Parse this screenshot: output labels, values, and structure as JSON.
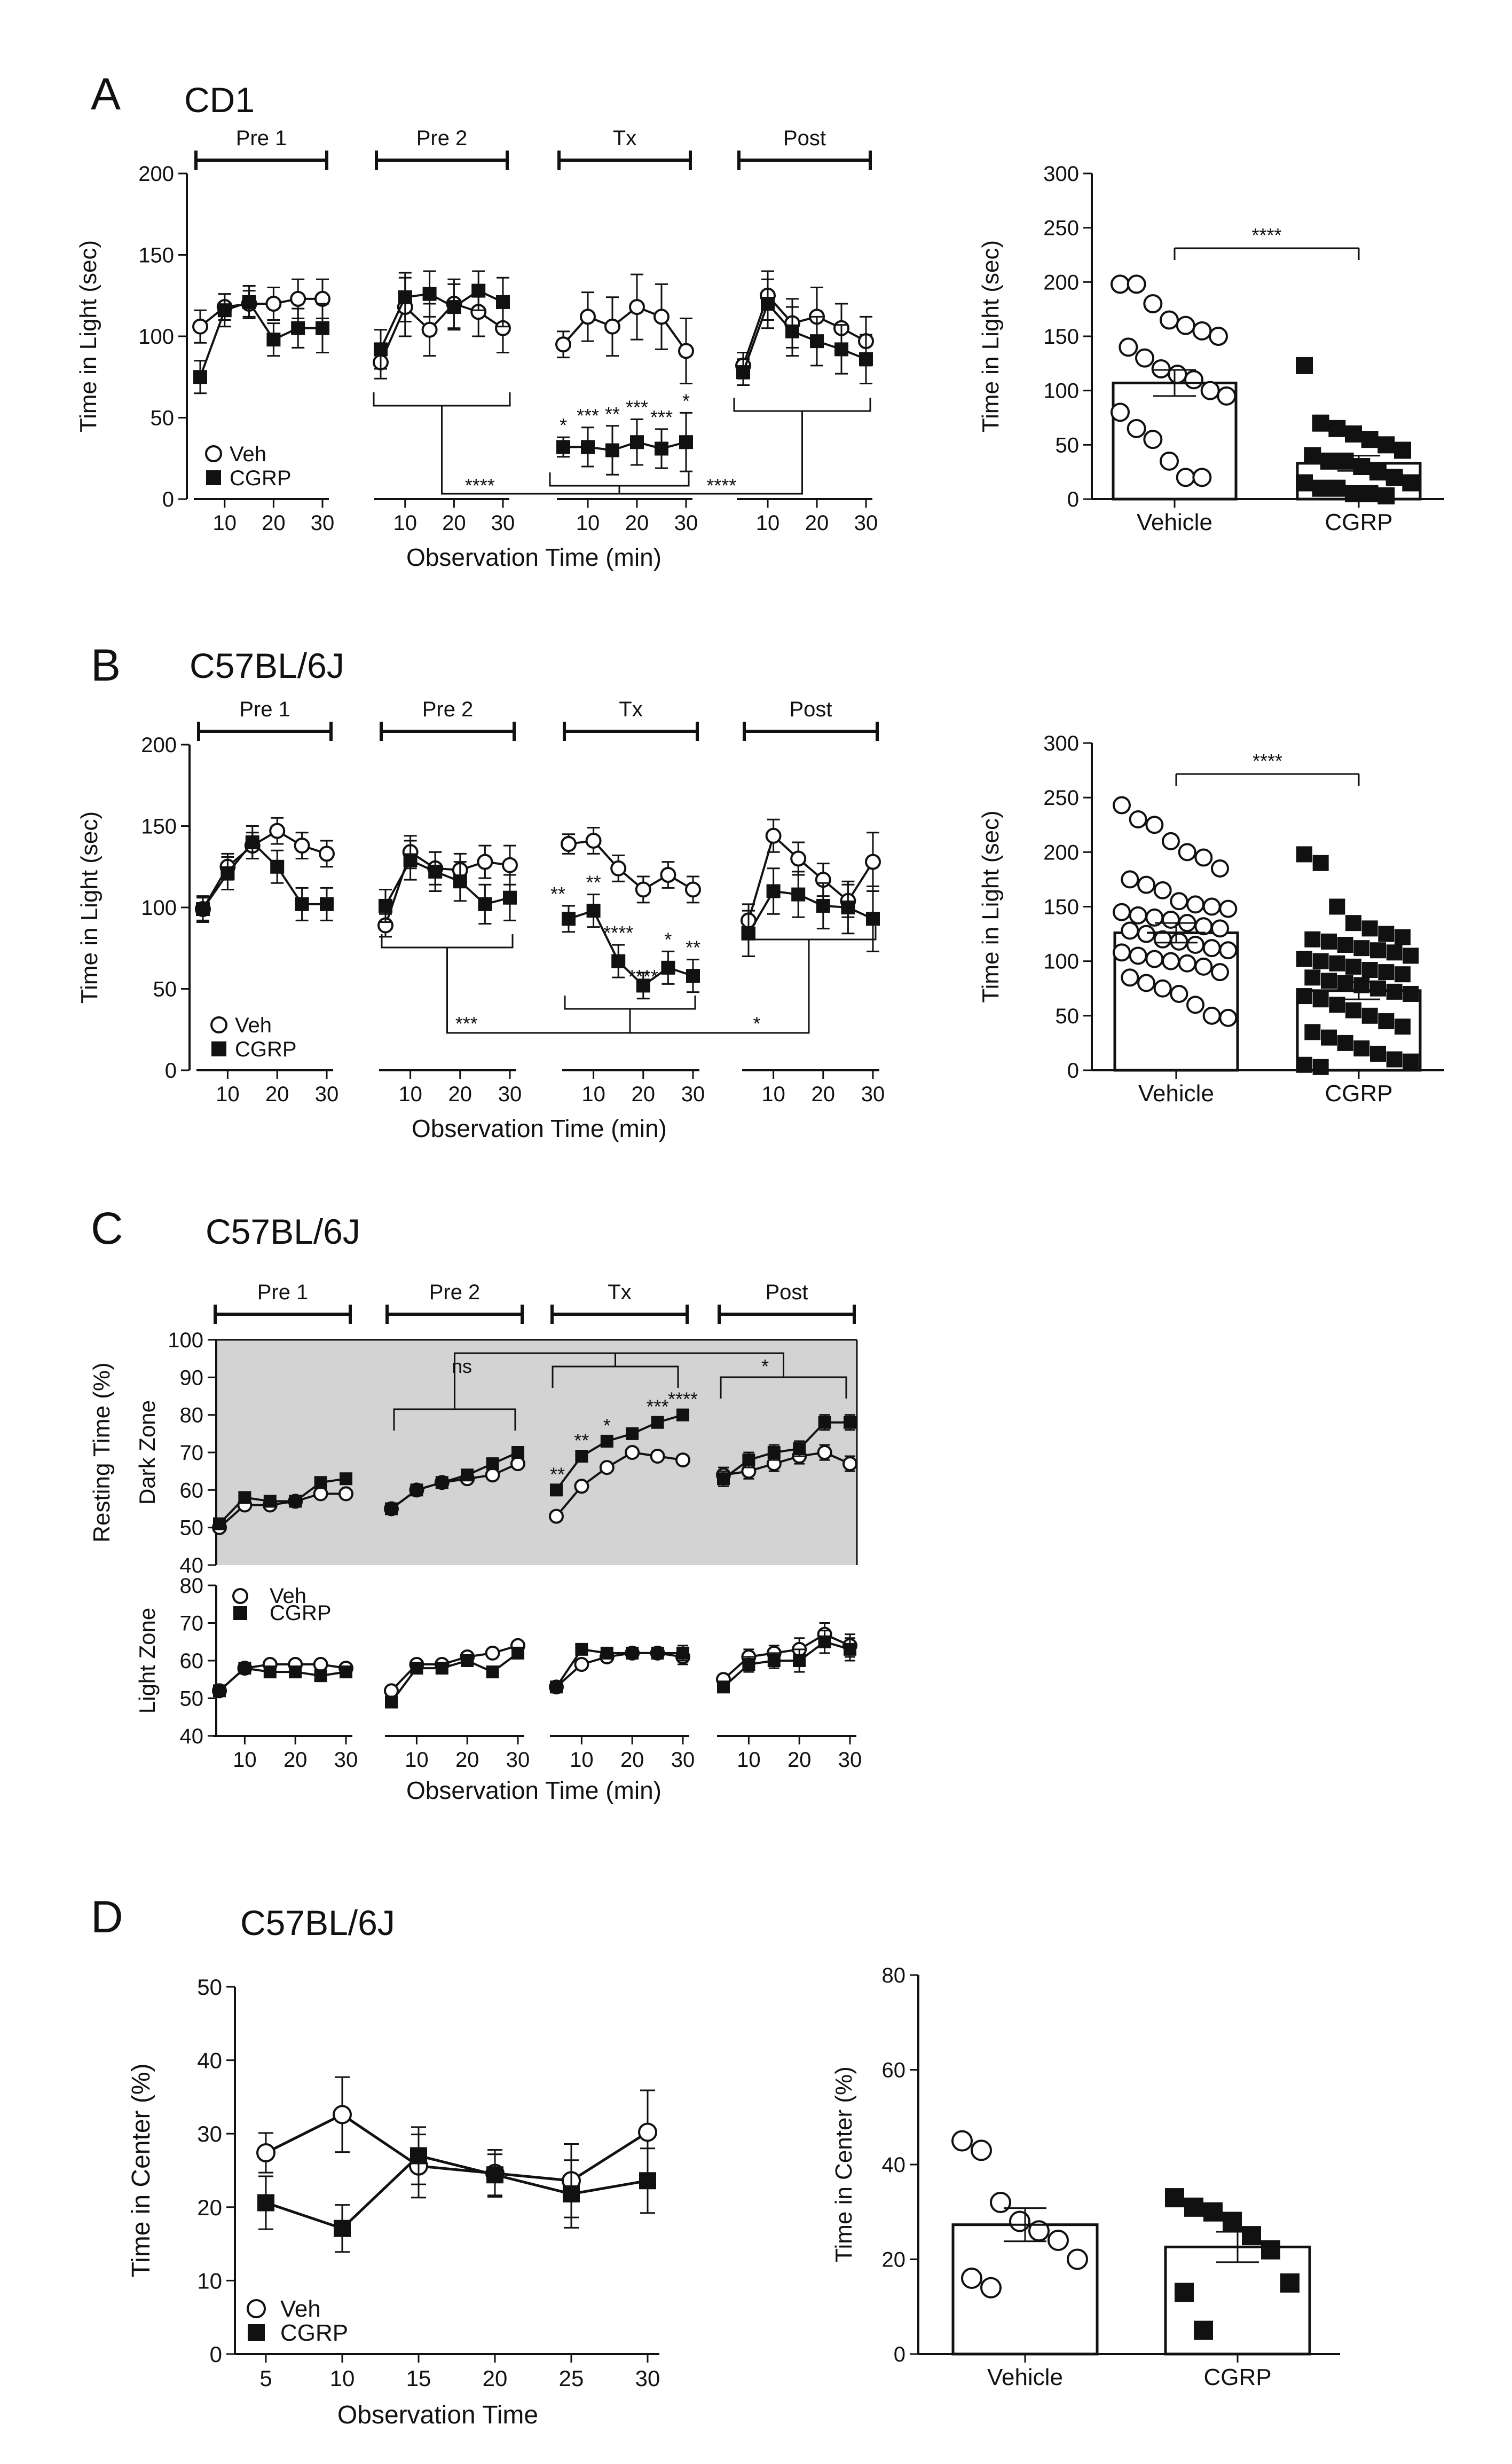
{
  "figure": {
    "panels": [
      "A",
      "B",
      "C",
      "D"
    ]
  },
  "chart_data": [
    {
      "id": "A_line",
      "type": "line",
      "panel": "A",
      "strain": "CD1",
      "ylabel": "Time in Light (sec)",
      "xlabel": "Observation Time (min)",
      "ylim": [
        0,
        200
      ],
      "yticks": [
        0,
        50,
        100,
        150,
        200
      ],
      "phases": [
        "Pre 1",
        "Pre 2",
        "Tx",
        "Post"
      ],
      "x": [
        5,
        10,
        15,
        20,
        25,
        30
      ],
      "xticks": [
        10,
        20,
        30
      ],
      "series": [
        {
          "name": "Veh",
          "marker": "open-circle",
          "values": [
            [
              106,
              118,
              120,
              120,
              123,
              123
            ],
            [
              84,
              118,
              104,
              120,
              115,
              105
            ],
            [
              95,
              112,
              106,
              118,
              112,
              91
            ],
            [
              82,
              125,
              108,
              112,
              105,
              97
            ]
          ],
          "errors": [
            [
              10,
              8,
              8,
              10,
              12,
              12
            ],
            [
              10,
              18,
              16,
              15,
              15,
              15
            ],
            [
              8,
              15,
              18,
              20,
              20,
              20
            ],
            [
              8,
              15,
              15,
              18,
              15,
              15
            ]
          ]
        },
        {
          "name": "CGRP",
          "marker": "filled-square",
          "values": [
            [
              75,
              116,
              121,
              98,
              105,
              105
            ],
            [
              92,
              124,
              126,
              118,
              128,
              121
            ],
            [
              32,
              32,
              30,
              35,
              31,
              35
            ],
            [
              78,
              120,
              103,
              97,
              92,
              86
            ]
          ],
          "errors": [
            [
              10,
              10,
              10,
              10,
              12,
              15
            ],
            [
              12,
              15,
              14,
              14,
              12,
              15
            ],
            [
              6,
              12,
              15,
              14,
              12,
              18
            ],
            [
              8,
              15,
              15,
              15,
              15,
              15
            ]
          ]
        }
      ],
      "stars": [
        [
          "*",
          "***",
          "**",
          "***",
          "***",
          "*"
        ]
      ],
      "brackets": [
        {
          "label": "****"
        },
        {
          "label": "****"
        }
      ]
    },
    {
      "id": "A_bar",
      "type": "bar",
      "panel": "A",
      "ylabel": "Time in Light (sec)",
      "ylim": [
        0,
        300
      ],
      "yticks": [
        0,
        50,
        100,
        150,
        200,
        250,
        300
      ],
      "categories": [
        "Vehicle",
        "CGRP"
      ],
      "values": [
        107,
        33
      ],
      "errors": [
        12,
        7
      ],
      "significance": "****",
      "points": [
        [
          198,
          198,
          180,
          165,
          160,
          155,
          150,
          140,
          130,
          120,
          115,
          110,
          100,
          95,
          80,
          65,
          55,
          35,
          20,
          20
        ],
        [
          123,
          70,
          65,
          60,
          55,
          50,
          45,
          40,
          35,
          35,
          30,
          25,
          20,
          15,
          15,
          10,
          10,
          5,
          5,
          3
        ]
      ]
    },
    {
      "id": "B_line",
      "type": "line",
      "panel": "B",
      "strain": "C57BL/6J",
      "ylabel": "Time in Light (sec)",
      "xlabel": "Observation Time (min)",
      "ylim": [
        0,
        200
      ],
      "yticks": [
        0,
        50,
        100,
        150,
        200
      ],
      "phases": [
        "Pre 1",
        "Pre 2",
        "Tx",
        "Post"
      ],
      "x": [
        5,
        10,
        15,
        20,
        25,
        30
      ],
      "xticks": [
        10,
        20,
        30
      ],
      "series": [
        {
          "name": "Veh",
          "marker": "open-circle",
          "values": [
            [
              99,
              125,
              138,
              147,
              138,
              133
            ],
            [
              89,
              134,
              124,
              123,
              128,
              126
            ],
            [
              139,
              141,
              124,
              111,
              120,
              111
            ],
            [
              92,
              144,
              130,
              117,
              104,
              128
            ]
          ],
          "errors": [
            [
              7,
              8,
              8,
              8,
              8,
              8
            ],
            [
              7,
              10,
              10,
              10,
              10,
              12
            ],
            [
              6,
              8,
              8,
              8,
              8,
              8
            ],
            [
              10,
              10,
              10,
              10,
              10,
              18
            ]
          ]
        },
        {
          "name": "CGRP",
          "marker": "filled-square",
          "values": [
            [
              99,
              121,
              140,
              125,
              102,
              102
            ],
            [
              101,
              129,
              122,
              116,
              102,
              106
            ],
            [
              93,
              98,
              67,
              52,
              63,
              58
            ],
            [
              84,
              110,
              108,
              101,
              100,
              93
            ]
          ],
          "errors": [
            [
              8,
              10,
              10,
              10,
              10,
              10
            ],
            [
              10,
              12,
              12,
              12,
              12,
              14
            ],
            [
              8,
              10,
              10,
              8,
              10,
              10
            ],
            [
              14,
              14,
              14,
              14,
              16,
              20
            ]
          ]
        }
      ],
      "stars": [
        [
          "**",
          "**",
          "****",
          "****",
          "*",
          "**"
        ]
      ],
      "brackets": [
        {
          "label": "***"
        },
        {
          "label": "*"
        }
      ]
    },
    {
      "id": "B_bar",
      "type": "bar",
      "panel": "B",
      "ylabel": "Time in Light (sec)",
      "ylim": [
        0,
        300
      ],
      "yticks": [
        0,
        50,
        100,
        150,
        200,
        250,
        300
      ],
      "categories": [
        "Vehicle",
        "CGRP"
      ],
      "values": [
        126,
        73
      ],
      "errors": [
        9,
        8
      ],
      "significance": "****",
      "points": [
        [
          243,
          230,
          225,
          210,
          200,
          195,
          185,
          175,
          170,
          165,
          155,
          152,
          150,
          148,
          145,
          142,
          140,
          138,
          135,
          132,
          130,
          128,
          125,
          120,
          118,
          115,
          112,
          110,
          108,
          105,
          102,
          100,
          98,
          95,
          90,
          85,
          80,
          75,
          70,
          60,
          50,
          48
        ],
        [
          198,
          190,
          150,
          135,
          130,
          125,
          122,
          120,
          118,
          115,
          112,
          110,
          108,
          105,
          102,
          100,
          98,
          95,
          92,
          90,
          88,
          85,
          82,
          80,
          78,
          75,
          72,
          70,
          68,
          65,
          60,
          55,
          50,
          45,
          40,
          35,
          30,
          25,
          20,
          15,
          10,
          8,
          5,
          3
        ]
      ]
    },
    {
      "id": "C_dark",
      "type": "line",
      "panel": "C",
      "strain": "C57BL/6J",
      "zone": "Dark Zone",
      "ylabel": "Resting Time (%)",
      "ylim": [
        40,
        100
      ],
      "yticks": [
        40,
        50,
        60,
        70,
        80,
        90,
        100
      ],
      "phases": [
        "Pre 1",
        "Pre 2",
        "Tx",
        "Post"
      ],
      "x": [
        5,
        10,
        15,
        20,
        25,
        30
      ],
      "xticks": [
        10,
        20,
        30
      ],
      "series": [
        {
          "name": "Veh",
          "marker": "open-circle",
          "values": [
            [
              50,
              56,
              56,
              57,
              59,
              59
            ],
            [
              55,
              60,
              62,
              63,
              64,
              67
            ],
            [
              53,
              61,
              66,
              70,
              69,
              68
            ],
            [
              64,
              65,
              67,
              69,
              70,
              67
            ]
          ],
          "errors": [
            [
              1,
              1,
              1,
              1,
              1,
              1
            ],
            [
              1,
              1,
              1,
              1,
              1,
              1
            ],
            [
              1,
              1,
              1,
              1,
              1,
              1
            ],
            [
              2,
              2,
              2,
              2,
              2,
              2
            ]
          ]
        },
        {
          "name": "CGRP",
          "marker": "filled-square",
          "values": [
            [
              51,
              58,
              57,
              57,
              62,
              63
            ],
            [
              55,
              60,
              62,
              64,
              67,
              70
            ],
            [
              60,
              69,
              73,
              75,
              78,
              80
            ],
            [
              63,
              68,
              70,
              71,
              78,
              78
            ]
          ],
          "errors": [
            [
              1,
              1,
              1,
              1,
              1,
              1
            ],
            [
              1,
              1,
              1,
              1,
              1,
              1
            ],
            [
              1,
              1,
              1,
              1,
              1,
              1
            ],
            [
              2,
              2,
              2,
              2,
              2,
              2
            ]
          ]
        }
      ],
      "stars": [
        [
          "**",
          "**",
          "*",
          "",
          "***",
          "****"
        ]
      ],
      "brackets": [
        {
          "label": "ns"
        },
        {
          "label": "*"
        }
      ]
    },
    {
      "id": "C_light",
      "type": "line",
      "panel": "C",
      "zone": "Light Zone",
      "xlabel": "Observation Time (min)",
      "ylim": [
        40,
        80
      ],
      "yticks": [
        40,
        50,
        60,
        70,
        80
      ],
      "x": [
        5,
        10,
        15,
        20,
        25,
        30
      ],
      "xticks": [
        10,
        20,
        30
      ],
      "series": [
        {
          "name": "Veh",
          "marker": "open-circle",
          "values": [
            [
              52,
              58,
              59,
              59,
              59,
              58
            ],
            [
              52,
              59,
              59,
              61,
              62,
              64
            ],
            [
              53,
              59,
              61,
              62,
              62,
              61
            ],
            [
              55,
              61,
              62,
              63,
              67,
              64
            ]
          ],
          "errors": [
            [
              1,
              1,
              1,
              1,
              1,
              1
            ],
            [
              1,
              1,
              1,
              1,
              1,
              1
            ],
            [
              1,
              1,
              1,
              1,
              1,
              2
            ],
            [
              1,
              2,
              2,
              3,
              3,
              3
            ]
          ]
        },
        {
          "name": "CGRP",
          "marker": "filled-square",
          "values": [
            [
              52,
              58,
              57,
              57,
              56,
              57
            ],
            [
              49,
              58,
              58,
              60,
              57,
              62
            ],
            [
              53,
              63,
              62,
              62,
              62,
              62
            ],
            [
              53,
              59,
              60,
              60,
              65,
              63
            ]
          ],
          "errors": [
            [
              1,
              1,
              1,
              1,
              1,
              1
            ],
            [
              1,
              1,
              1,
              1,
              1,
              1
            ],
            [
              1,
              1,
              1,
              1,
              1,
              2
            ],
            [
              1,
              2,
              2,
              3,
              3,
              3
            ]
          ]
        }
      ]
    },
    {
      "id": "D_line",
      "type": "line",
      "panel": "D",
      "strain": "C57BL/6J",
      "ylabel": "Time in Center (%)",
      "xlabel": "Observation Time",
      "ylim": [
        0,
        50
      ],
      "yticks": [
        0,
        10,
        20,
        30,
        40,
        50
      ],
      "x": [
        5,
        10,
        15,
        20,
        25,
        30
      ],
      "series": [
        {
          "name": "Veh",
          "marker": "open-circle",
          "values": [
            27.4,
            32.6,
            25.6,
            24.6,
            23.6,
            30.2
          ],
          "errors": [
            2.7,
            5.1,
            4.3,
            3.2,
            5,
            5.7
          ]
        },
        {
          "name": "CGRP",
          "marker": "filled-square",
          "values": [
            20.6,
            17.1,
            27,
            24.4,
            21.8,
            23.6
          ],
          "errors": [
            3.6,
            3.2,
            3.9,
            2.8,
            4.6,
            4.4
          ]
        }
      ]
    },
    {
      "id": "D_bar",
      "type": "bar",
      "panel": "D",
      "ylabel": "Time in Center (%)",
      "ylim": [
        0,
        80
      ],
      "yticks": [
        0,
        20,
        40,
        60,
        80
      ],
      "categories": [
        "Vehicle",
        "CGRP"
      ],
      "values": [
        27.3,
        22.6
      ],
      "errors": [
        3.5,
        3.2
      ],
      "points": [
        [
          45,
          43,
          32,
          28,
          26,
          24,
          20,
          16,
          14
        ],
        [
          33,
          31,
          30,
          28,
          25,
          22,
          15,
          13,
          5
        ]
      ]
    }
  ]
}
